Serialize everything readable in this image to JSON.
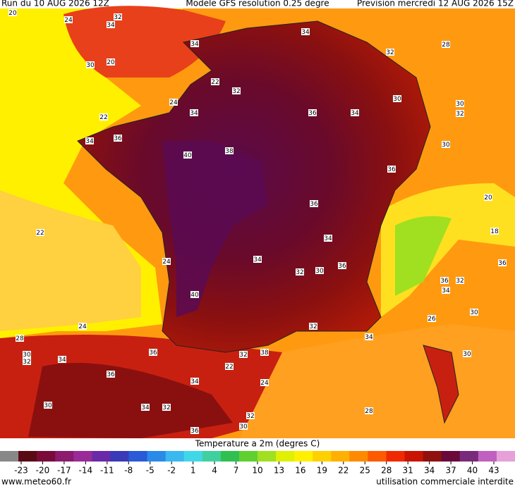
{
  "header": {
    "run": "Run du 10 AUG 2026 12Z",
    "model": "Modele GFS resolution 0.25 degre",
    "forecast": "Prevision mercredi 12 AUG 2026 15Z"
  },
  "map": {
    "labels": [
      "20",
      "24",
      "32",
      "34",
      "34",
      "32",
      "28",
      "34",
      "20",
      "30",
      "22",
      "32",
      "24",
      "34",
      "36",
      "34",
      "30",
      "30",
      "32",
      "22",
      "34",
      "36",
      "40",
      "38",
      "30",
      "36",
      "20",
      "22",
      "36",
      "34",
      "34",
      "32",
      "30",
      "36",
      "36",
      "34",
      "32",
      "36",
      "18",
      "24",
      "40",
      "24",
      "28",
      "30",
      "32",
      "34",
      "36",
      "32",
      "38",
      "34",
      "26",
      "30",
      "30",
      "36",
      "34",
      "24",
      "30",
      "34",
      "32",
      "32",
      "30",
      "36",
      "28",
      "22",
      "32"
    ]
  },
  "colorbar": {
    "title": "Temperature a 2m (degres C)",
    "ticks": [
      -23,
      -20,
      -17,
      -14,
      -11,
      -8,
      -5,
      -2,
      1,
      4,
      7,
      10,
      13,
      16,
      19,
      22,
      25,
      28,
      31,
      34,
      37,
      40,
      43
    ],
    "colors": [
      "#888888",
      "#5a0a14",
      "#7a0a3a",
      "#8c1a6e",
      "#9a2a9a",
      "#6a2aa8",
      "#3a3ab8",
      "#2a5ad8",
      "#2a8ae8",
      "#3ab8f0",
      "#40d8e8",
      "#40d0a0",
      "#30c050",
      "#60d030",
      "#a0e020",
      "#e0f000",
      "#fff000",
      "#ffd000",
      "#ffb000",
      "#ff8a00",
      "#ff5a00",
      "#f02a00",
      "#c81400",
      "#901010",
      "#6a0a3a",
      "#7a2a7a",
      "#c060c0",
      "#e8a0d8"
    ]
  },
  "footer": {
    "site": "www.meteo60.fr",
    "notice": "utilisation commerciale interdite"
  }
}
